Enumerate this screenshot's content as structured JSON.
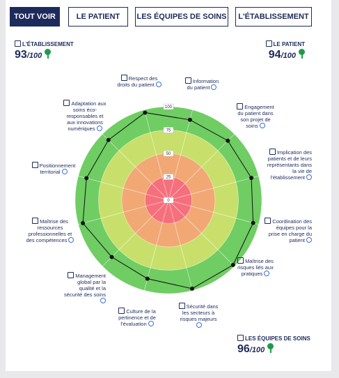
{
  "tabs": [
    "TOUT VOIR",
    "LE PATIENT",
    "LES ÉQUIPES DE SOINS",
    "L'ÉTABLISSEMENT"
  ],
  "scores": [
    {
      "label": "L'ÉTABLISSEMENT",
      "value": 93,
      "out_of": "/100"
    },
    {
      "label": "LE PATIENT",
      "value": 94,
      "out_of": "/100"
    },
    {
      "label": "LES ÉQUIPES DE SOINS",
      "value": 96,
      "out_of": "/100"
    }
  ],
  "chart_data": {
    "type": "radar",
    "categories": [
      "Information du patient",
      "Engagement du patient dans son projet de soins",
      "Implication des patients et de leurs représentants dans la vie de l'établissement",
      "Coordination des équipes pour la prise en charge du patient",
      "Maîtrise des risques liés aux pratiques",
      "Sécurité dans les secteurs à risques majeurs",
      "Culture de la pertinence et de l'évaluation",
      "Management global par la qualité et la sécurité des soins",
      "Maîtrise des ressources professionnelles et des compétences",
      "Positionnement territorial",
      "Adaptation aux soins éco-responsables et aux innovations numériques",
      "Respect des droits du patient"
    ],
    "values": [
      89,
      90,
      92,
      94,
      98,
      98,
      87,
      86,
      95,
      91,
      91,
      97
    ],
    "ylim": [
      0,
      100
    ],
    "yticks": [
      0,
      25,
      50,
      75,
      100
    ],
    "band_colors": [
      "#f66f7c",
      "#f2a874",
      "#c8e06b",
      "#6fcd63"
    ],
    "line_color": "#111111"
  }
}
